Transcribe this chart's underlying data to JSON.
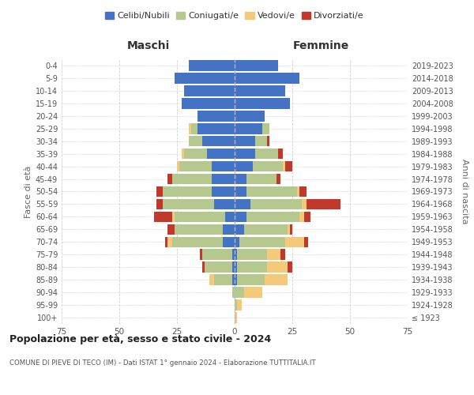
{
  "age_groups": [
    "100+",
    "95-99",
    "90-94",
    "85-89",
    "80-84",
    "75-79",
    "70-74",
    "65-69",
    "60-64",
    "55-59",
    "50-54",
    "45-49",
    "40-44",
    "35-39",
    "30-34",
    "25-29",
    "20-24",
    "15-19",
    "10-14",
    "5-9",
    "0-4"
  ],
  "birth_years": [
    "≤ 1923",
    "1924-1928",
    "1929-1933",
    "1934-1938",
    "1939-1943",
    "1944-1948",
    "1949-1953",
    "1954-1958",
    "1959-1963",
    "1964-1968",
    "1969-1973",
    "1974-1978",
    "1979-1983",
    "1984-1988",
    "1989-1993",
    "1994-1998",
    "1999-2003",
    "2004-2008",
    "2009-2013",
    "2014-2018",
    "2019-2023"
  ],
  "colors": {
    "celibi": "#4472C4",
    "coniugati": "#b5c98e",
    "vedovi": "#f5c97a",
    "divorziati": "#c0392b"
  },
  "males": {
    "celibi": [
      0,
      0,
      0,
      1,
      1,
      1,
      5,
      5,
      4,
      9,
      10,
      10,
      10,
      12,
      14,
      16,
      16,
      23,
      22,
      26,
      20
    ],
    "coniugati": [
      0,
      0,
      1,
      8,
      12,
      13,
      22,
      21,
      22,
      22,
      21,
      17,
      14,
      10,
      6,
      3,
      0,
      0,
      0,
      0,
      0
    ],
    "vedovi": [
      0,
      0,
      0,
      2,
      0,
      0,
      2,
      0,
      1,
      0,
      0,
      0,
      1,
      1,
      0,
      1,
      0,
      0,
      0,
      0,
      0
    ],
    "divorziati": [
      0,
      0,
      0,
      0,
      1,
      1,
      1,
      3,
      8,
      3,
      3,
      2,
      0,
      0,
      0,
      0,
      0,
      0,
      0,
      0,
      0
    ]
  },
  "females": {
    "nubili": [
      0,
      0,
      0,
      1,
      1,
      1,
      2,
      4,
      5,
      7,
      5,
      5,
      8,
      9,
      9,
      12,
      13,
      24,
      22,
      28,
      19
    ],
    "coniugati": [
      0,
      1,
      4,
      12,
      13,
      13,
      20,
      19,
      23,
      22,
      22,
      13,
      13,
      10,
      5,
      3,
      0,
      0,
      0,
      0,
      0
    ],
    "vedovi": [
      1,
      2,
      8,
      10,
      9,
      6,
      8,
      1,
      2,
      2,
      1,
      0,
      1,
      0,
      0,
      0,
      0,
      0,
      0,
      0,
      0
    ],
    "divorziati": [
      0,
      0,
      0,
      0,
      2,
      2,
      2,
      1,
      3,
      15,
      3,
      2,
      3,
      2,
      1,
      0,
      0,
      0,
      0,
      0,
      0
    ]
  },
  "title": "Popolazione per età, sesso e stato civile - 2024",
  "subtitle": "COMUNE DI PIEVE DI TECO (IM) - Dati ISTAT 1° gennaio 2024 - Elaborazione TUTTITALIA.IT",
  "xlabel_left": "Maschi",
  "xlabel_right": "Femmine",
  "ylabel_left": "Fasce di età",
  "ylabel_right": "Anni di nascita",
  "xlim": 75,
  "bg_color": "#ffffff",
  "grid_color": "#cccccc",
  "legend_labels": [
    "Celibi/Nubili",
    "Coniugati/e",
    "Vedovi/e",
    "Divorziati/e"
  ]
}
